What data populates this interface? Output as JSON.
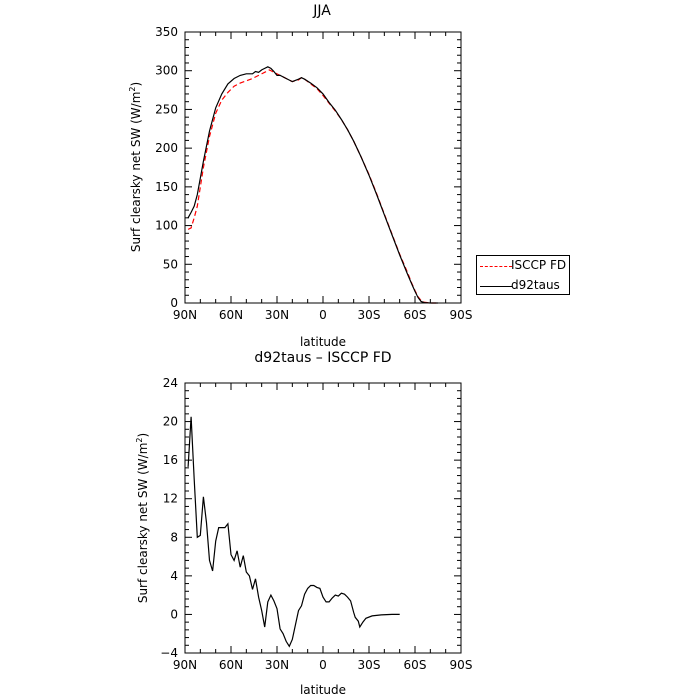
{
  "colors": {
    "isccp": "#ff0000",
    "d92taus": "#000000"
  },
  "chart_data": [
    {
      "type": "line",
      "title": "JJA",
      "xlabel": "latitude",
      "ylabel": "Surf clearsky net SW (W/m",
      "ylabel_sup": "2",
      "ylabel_end": ")",
      "x_tick_labels": [
        "90N",
        "60N",
        "30N",
        "0",
        "30S",
        "60S",
        "90S"
      ],
      "y_tick_labels": [
        "0",
        "50",
        "100",
        "150",
        "200",
        "250",
        "300",
        "350"
      ],
      "xlim": [
        90,
        -90
      ],
      "ylim": [
        0,
        350
      ],
      "grid": false,
      "legend": {
        "position": "right",
        "entries": [
          "ISCCP FD",
          "d92taus"
        ]
      },
      "series": [
        {
          "name": "ISCCP FD",
          "style": "dashed",
          "points": [
            [
              88,
              95
            ],
            [
              86,
              97
            ],
            [
              84,
              110
            ],
            [
              82,
              125
            ],
            [
              78,
              175
            ],
            [
              74,
              215
            ],
            [
              70,
              245
            ],
            [
              66,
              262
            ],
            [
              62,
              272
            ],
            [
              58,
              280
            ],
            [
              54,
              284
            ],
            [
              50,
              287
            ],
            [
              46,
              290
            ],
            [
              42,
              294
            ],
            [
              38,
              298
            ],
            [
              35,
              301
            ],
            [
              32,
              298
            ],
            [
              28,
              294
            ],
            [
              24,
              290
            ],
            [
              20,
              286
            ],
            [
              16,
              288
            ],
            [
              14,
              291
            ],
            [
              12,
              289
            ],
            [
              8,
              283
            ],
            [
              4,
              277
            ],
            [
              0,
              268
            ],
            [
              -4,
              258
            ],
            [
              -8,
              248
            ],
            [
              -12,
              237
            ],
            [
              -16,
              224
            ],
            [
              -20,
              209
            ],
            [
              -25,
              188
            ],
            [
              -30,
              166
            ],
            [
              -35,
              141
            ],
            [
              -40,
              115
            ],
            [
              -45,
              89
            ],
            [
              -50,
              63
            ],
            [
              -55,
              40
            ],
            [
              -58,
              25
            ],
            [
              -60,
              16
            ],
            [
              -62,
              8
            ],
            [
              -64,
              3
            ],
            [
              -66,
              1
            ],
            [
              -70,
              0
            ],
            [
              -75,
              0
            ]
          ]
        },
        {
          "name": "d92taus",
          "style": "solid",
          "points": [
            [
              88,
              110
            ],
            [
              86,
              117
            ],
            [
              84,
              125
            ],
            [
              82,
              140
            ],
            [
              78,
              183
            ],
            [
              74,
              222
            ],
            [
              70,
              252
            ],
            [
              66,
              270
            ],
            [
              62,
              283
            ],
            [
              58,
              290
            ],
            [
              54,
              294
            ],
            [
              50,
              296
            ],
            [
              46,
              296
            ],
            [
              44,
              299
            ],
            [
              42,
              298
            ],
            [
              40,
              301
            ],
            [
              38,
              303
            ],
            [
              36,
              305
            ],
            [
              34,
              303
            ],
            [
              32,
              299
            ],
            [
              30,
              294
            ],
            [
              28,
              294
            ],
            [
              24,
              290
            ],
            [
              20,
              286
            ],
            [
              16,
              289
            ],
            [
              14,
              291
            ],
            [
              12,
              289
            ],
            [
              8,
              284
            ],
            [
              4,
              278
            ],
            [
              0,
              270
            ],
            [
              -4,
              259
            ],
            [
              -8,
              249
            ],
            [
              -12,
              237
            ],
            [
              -16,
              224
            ],
            [
              -20,
              209
            ],
            [
              -25,
              188
            ],
            [
              -30,
              165
            ],
            [
              -35,
              140
            ],
            [
              -40,
              114
            ],
            [
              -45,
              88
            ],
            [
              -50,
              62
            ],
            [
              -55,
              38
            ],
            [
              -58,
              24
            ],
            [
              -60,
              15
            ],
            [
              -62,
              7
            ],
            [
              -64,
              2
            ],
            [
              -66,
              0.5
            ],
            [
              -70,
              0
            ],
            [
              -75,
              0
            ]
          ]
        }
      ]
    },
    {
      "type": "line",
      "title": "d92taus – ISCCP FD",
      "xlabel": "latitude",
      "ylabel": "Surf clearsky net SW (W/m",
      "ylabel_sup": "2",
      "ylabel_end": ")",
      "x_tick_labels": [
        "90N",
        "60N",
        "30N",
        "0",
        "30S",
        "60S",
        "90S"
      ],
      "y_tick_labels": [
        "−4",
        "0",
        "4",
        "8",
        "12",
        "16",
        "20",
        "24"
      ],
      "xlim": [
        90,
        -90
      ],
      "ylim": [
        -4,
        24
      ],
      "grid": false,
      "series": [
        {
          "name": "d92taus – ISCCP FD",
          "style": "solid",
          "points": [
            [
              88,
              15.3
            ],
            [
              86,
              20.5
            ],
            [
              84,
              14
            ],
            [
              82,
              8
            ],
            [
              80,
              8.2
            ],
            [
              78,
              12.2
            ],
            [
              76,
              9.5
            ],
            [
              74,
              5.6
            ],
            [
              72,
              4.5
            ],
            [
              70,
              7.6
            ],
            [
              68,
              9
            ],
            [
              66,
              9
            ],
            [
              64,
              9
            ],
            [
              62,
              9.4
            ],
            [
              60,
              6.2
            ],
            [
              58,
              5.6
            ],
            [
              56,
              6.6
            ],
            [
              54,
              4.9
            ],
            [
              52,
              6.1
            ],
            [
              50,
              4.4
            ],
            [
              48,
              4
            ],
            [
              46,
              2.6
            ],
            [
              44,
              3.7
            ],
            [
              42,
              1.8
            ],
            [
              40,
              0.4
            ],
            [
              38,
              -1.3
            ],
            [
              36,
              1.3
            ],
            [
              34,
              2
            ],
            [
              32,
              1.4
            ],
            [
              30,
              0.6
            ],
            [
              28,
              -1.5
            ],
            [
              26,
              -2
            ],
            [
              24,
              -2.8
            ],
            [
              22,
              -3.3
            ],
            [
              20,
              -2.6
            ],
            [
              18,
              -1.1
            ],
            [
              16,
              0.4
            ],
            [
              14,
              0.9
            ],
            [
              12,
              2.1
            ],
            [
              10,
              2.7
            ],
            [
              8,
              3
            ],
            [
              6,
              3
            ],
            [
              4,
              2.8
            ],
            [
              2,
              2.7
            ],
            [
              0,
              1.8
            ],
            [
              -2,
              1.3
            ],
            [
              -4,
              1.3
            ],
            [
              -6,
              1.7
            ],
            [
              -8,
              2
            ],
            [
              -10,
              1.9
            ],
            [
              -12,
              2.2
            ],
            [
              -14,
              2.1
            ],
            [
              -16,
              1.8
            ],
            [
              -18,
              1.4
            ],
            [
              -20,
              0.2
            ],
            [
              -21,
              -0.3
            ],
            [
              -23,
              -0.7
            ],
            [
              -24,
              -1.3
            ],
            [
              -26,
              -0.8
            ],
            [
              -28,
              -0.4
            ],
            [
              -32,
              -0.15
            ],
            [
              -38,
              -0.05
            ],
            [
              -45,
              0
            ],
            [
              -50,
              0
            ]
          ]
        }
      ]
    }
  ]
}
